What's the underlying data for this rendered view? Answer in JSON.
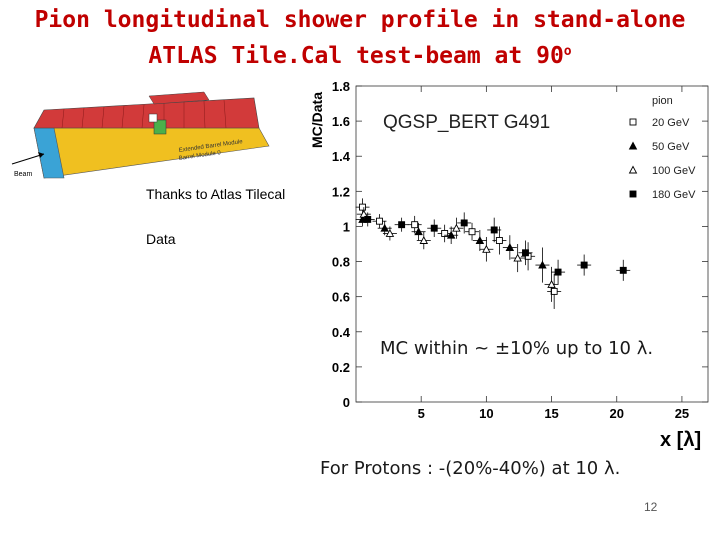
{
  "slide": {
    "title_line1": "Pion longitudinal shower profile in stand-alone",
    "title_line2": "ATLAS Tile.Cal test-beam at 90",
    "title_degree": "o",
    "credit_line1": "Thanks to Atlas Tilecal",
    "credit_line2": "Data",
    "note_mc": "MC within ~ ±10% up to 10 λ.",
    "note_protons": "For Protons : -(20%-40%) at 10 λ.",
    "page_number": "12"
  },
  "detector_image": {
    "beam_label": "Beam",
    "module_label_1": "Extended Barrel Module",
    "module_label_2": "Barrel Module 0"
  },
  "chart_data": {
    "type": "scatter",
    "header": "QGSP_BERT  G491",
    "xlabel": "x [λ]",
    "ylabel": "MC/Data",
    "xlim": [
      0,
      27
    ],
    "ylim": [
      0,
      1.8
    ],
    "xticks": [
      5,
      10,
      15,
      20,
      25
    ],
    "yticks": [
      0,
      0.2,
      0.4,
      0.6,
      0.8,
      1,
      1.2,
      1.4,
      1.6,
      1.8
    ],
    "ytick_labels": [
      "0",
      "0.2",
      "0.4",
      "0.6",
      "0.8",
      "1",
      "1.2",
      "1.4",
      "1.6",
      "1.8"
    ],
    "legend_title": "pion",
    "legend_position": "top-right",
    "grid": false,
    "series": [
      {
        "name": "20 GeV",
        "marker": "open-square",
        "points": [
          [
            0.5,
            1.11,
            0.05
          ],
          [
            1.8,
            1.03,
            0.04
          ],
          [
            4.5,
            1.01,
            0.05
          ],
          [
            6.8,
            0.96,
            0.05
          ],
          [
            8.9,
            0.97,
            0.05
          ],
          [
            11,
            0.92,
            0.08
          ],
          [
            13.2,
            0.83,
            0.08
          ],
          [
            15.2,
            0.63,
            0.1
          ]
        ]
      },
      {
        "name": "50 GeV",
        "marker": "filled-triangle",
        "points": [
          [
            0.5,
            1.04,
            0.04
          ],
          [
            2.2,
            0.99,
            0.04
          ],
          [
            4.8,
            0.97,
            0.05
          ],
          [
            7.3,
            0.95,
            0.05
          ],
          [
            9.5,
            0.92,
            0.06
          ],
          [
            11.8,
            0.88,
            0.07
          ],
          [
            14.3,
            0.78,
            0.1
          ]
        ]
      },
      {
        "name": "100 GeV",
        "marker": "open-triangle",
        "points": [
          [
            0.6,
            1.07,
            0.04
          ],
          [
            2.6,
            0.96,
            0.04
          ],
          [
            5.2,
            0.92,
            0.05
          ],
          [
            7.7,
            0.99,
            0.06
          ],
          [
            10,
            0.87,
            0.07
          ],
          [
            12.4,
            0.82,
            0.08
          ],
          [
            15,
            0.67,
            0.1
          ]
        ]
      },
      {
        "name": "180 GeV",
        "marker": "filled-square",
        "points": [
          [
            0.9,
            1.04,
            0.04
          ],
          [
            3.5,
            1.01,
            0.04
          ],
          [
            6,
            0.99,
            0.05
          ],
          [
            8.3,
            1.02,
            0.06
          ],
          [
            10.6,
            0.98,
            0.07
          ],
          [
            13,
            0.85,
            0.07
          ],
          [
            15.5,
            0.74,
            0.07
          ],
          [
            17.5,
            0.78,
            0.06
          ],
          [
            20.5,
            0.75,
            0.06
          ]
        ]
      }
    ]
  }
}
